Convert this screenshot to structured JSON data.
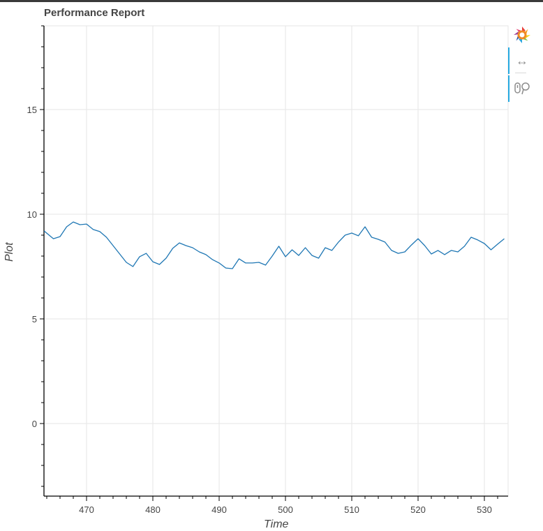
{
  "header": {
    "title": "Performance Report"
  },
  "toolbar": {
    "logo_icon": "bokeh-logo-icon",
    "tools": [
      {
        "name": "pan-tool",
        "glyph": "↔"
      },
      {
        "name": "wheel-zoom-tool",
        "glyph": "₀♀"
      }
    ]
  },
  "axes": {
    "xlabel": "Time",
    "ylabel": "Plot"
  },
  "colors": {
    "line": "#1f77b4",
    "grid": "#e5e5e5",
    "axis": "#000000",
    "tick_label": "#444444",
    "title": "#444444",
    "toolbar_active": "#26aae1"
  },
  "chart_data": {
    "type": "line",
    "title": "Performance Report",
    "xlabel": "Time",
    "ylabel": "Plot",
    "xlim": [
      463.5,
      533.5
    ],
    "ylim": [
      -3.5,
      19
    ],
    "xticks": [
      470,
      480,
      490,
      500,
      510,
      520,
      530
    ],
    "yticks": [
      0,
      5,
      10,
      15
    ],
    "grid": true,
    "legend": null,
    "series": [
      {
        "name": "Plot",
        "x": [
          463.6,
          465,
          466,
          467,
          468,
          469,
          470,
          471,
          472,
          473,
          474,
          475,
          476,
          477,
          478,
          479,
          480,
          481,
          482,
          483,
          484,
          485,
          486,
          487,
          488,
          489,
          490,
          491,
          492,
          493,
          494,
          495,
          496,
          497,
          498,
          499,
          500,
          501,
          502,
          503,
          504,
          505,
          506,
          507,
          508,
          509,
          510,
          511,
          512,
          513,
          514,
          515,
          516,
          517,
          518,
          519,
          520,
          521,
          522,
          523,
          524,
          525,
          526,
          527,
          528,
          529,
          530,
          531,
          532,
          533
        ],
        "values": [
          9.2,
          8.83,
          8.93,
          9.4,
          9.63,
          9.5,
          9.53,
          9.27,
          9.17,
          8.9,
          8.5,
          8.1,
          7.7,
          7.5,
          7.97,
          8.13,
          7.73,
          7.6,
          7.9,
          8.37,
          8.63,
          8.5,
          8.4,
          8.2,
          8.07,
          7.83,
          7.67,
          7.43,
          7.4,
          7.87,
          7.67,
          7.67,
          7.7,
          7.57,
          8.0,
          8.47,
          7.97,
          8.3,
          8.03,
          8.4,
          8.03,
          7.9,
          8.4,
          8.27,
          8.67,
          9.0,
          9.1,
          8.97,
          9.4,
          8.9,
          8.8,
          8.67,
          8.27,
          8.13,
          8.2,
          8.53,
          8.83,
          8.5,
          8.1,
          8.27,
          8.07,
          8.27,
          8.2,
          8.47,
          8.9,
          8.77,
          8.6,
          8.3,
          8.57,
          8.83
        ]
      }
    ]
  }
}
